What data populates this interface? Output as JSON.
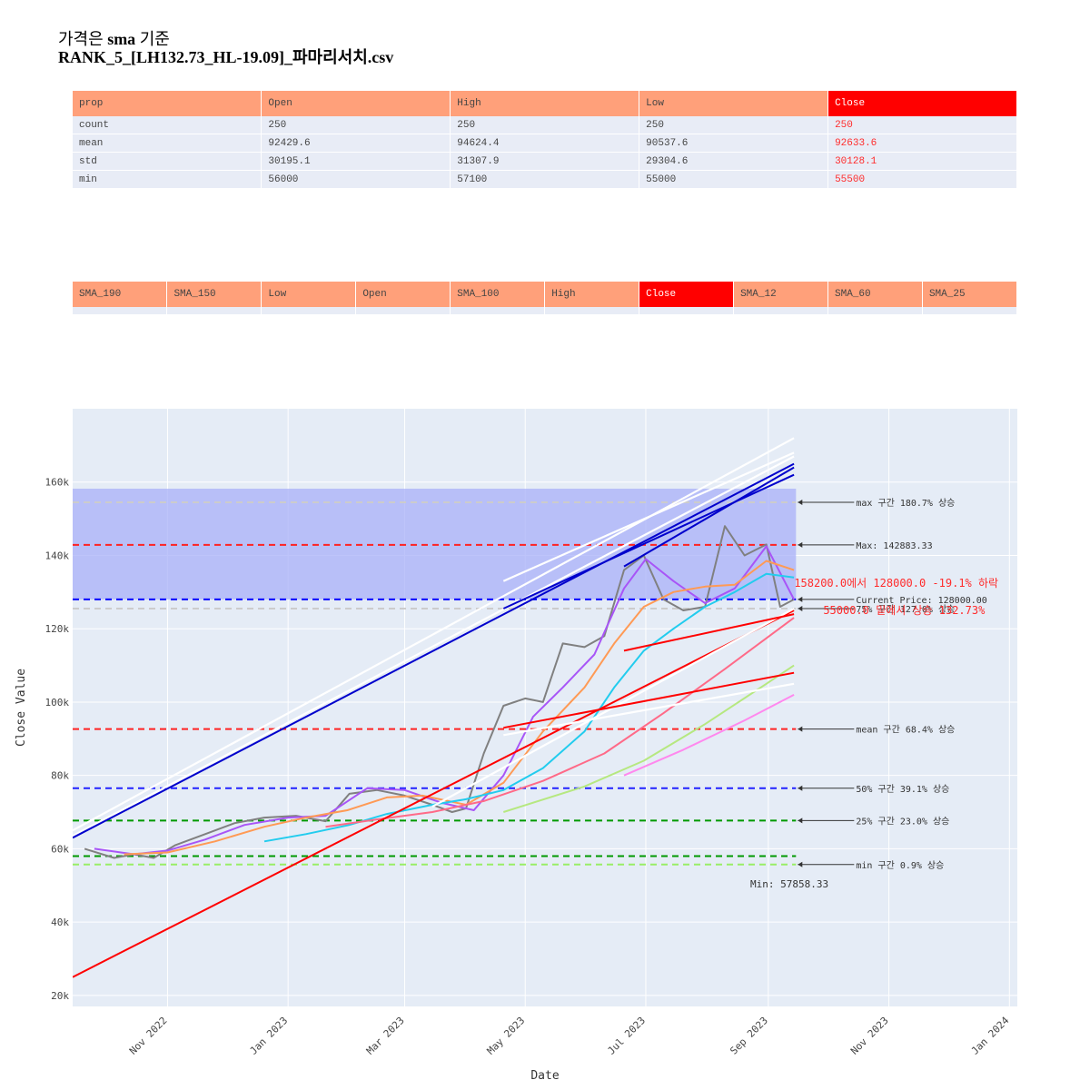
{
  "title": {
    "line1_prefix": "가격은 ",
    "line1_bold": "sma",
    "line1_suffix": " 기준",
    "line2": "RANK_5_[LH132.73_HL-19.09]_파마리서치.csv"
  },
  "table1": {
    "headers": [
      "prop",
      "Open",
      "High",
      "Low",
      "Close"
    ],
    "highlight_col": 4,
    "rows": [
      [
        "count",
        "250",
        "250",
        "250",
        "250"
      ],
      [
        "mean",
        "92429.6",
        "94624.4",
        "90537.6",
        "92633.6"
      ],
      [
        "std",
        "30195.1",
        "31307.9",
        "29304.6",
        "30128.1"
      ],
      [
        "min",
        "56000",
        "57100",
        "55000",
        "55500"
      ]
    ]
  },
  "table2": {
    "headers": [
      "SMA_190",
      "SMA_150",
      "Low",
      "Open",
      "SMA_100",
      "High",
      "Close",
      "SMA_12",
      "SMA_60",
      "SMA_25"
    ],
    "highlight_col": 6
  },
  "colors": {
    "header_bg": "#ffa07a",
    "header_highlight": "#ff0000",
    "plot_bg": "#e5ecf6",
    "price": "#808080",
    "band_fill": "#a8b0f8"
  },
  "chart_data": {
    "type": "line",
    "xlabel": "Date",
    "ylabel": "Close Value",
    "x_range": [
      "2022-09-14",
      "2024-01-05"
    ],
    "ylim": [
      17000,
      180000
    ],
    "x_ticks": [
      {
        "date": "2022-11-01",
        "label": "Nov 2022"
      },
      {
        "date": "2023-01-01",
        "label": "Jan 2023"
      },
      {
        "date": "2023-03-01",
        "label": "Mar 2023"
      },
      {
        "date": "2023-05-01",
        "label": "May 2023"
      },
      {
        "date": "2023-07-01",
        "label": "Jul 2023"
      },
      {
        "date": "2023-09-01",
        "label": "Sep 2023"
      },
      {
        "date": "2023-11-01",
        "label": "Nov 2023"
      },
      {
        "date": "2024-01-01",
        "label": "Jan 2024"
      }
    ],
    "y_ticks": [
      {
        "value": 20000,
        "label": "20k"
      },
      {
        "value": 40000,
        "label": "40k"
      },
      {
        "value": 60000,
        "label": "60k"
      },
      {
        "value": 80000,
        "label": "80k"
      },
      {
        "value": 100000,
        "label": "100k"
      },
      {
        "value": 120000,
        "label": "120k"
      },
      {
        "value": 140000,
        "label": "140k"
      },
      {
        "value": 160000,
        "label": "160k"
      }
    ],
    "grid": true,
    "band": {
      "x0": "2022-09-14",
      "x1": "2023-09-15",
      "y0": 128000,
      "y1": 158200
    },
    "hlines": [
      {
        "y": 154500,
        "color": "#cccccc",
        "label": "max 구간 180.7% 상승"
      },
      {
        "y": 142883.33,
        "color": "#ff2222",
        "label": "Max: 142883.33"
      },
      {
        "y": 128000,
        "color": "#0000ff",
        "label": "Current Price: 128000.00"
      },
      {
        "y": 125500,
        "color": "#cccccc",
        "label": "75% 구간 127.0% 상승"
      },
      {
        "y": 92633.6,
        "color": "#ff2222",
        "label": "mean 구간 68.4% 상승"
      },
      {
        "y": 76500,
        "color": "#2222ff",
        "label": "50% 구간 39.1% 상승"
      },
      {
        "y": 67700,
        "color": "#009900",
        "label": "25% 구간 23.0% 상승"
      },
      {
        "y": 58000,
        "color": "#009900",
        "label": ""
      },
      {
        "y": 55700,
        "color": "#99ee66",
        "label": "min 구간 0.9% 상승"
      }
    ],
    "annotations": {
      "drop": "158200.0에서 128000.0 -19.1% 하락",
      "rise": "55000.0 밑에서 상승 132.73%",
      "min_label": "Min: 57858.33"
    },
    "series": [
      {
        "color": "#808080",
        "x": [
          "2022-09-20",
          "2022-10-05",
          "2022-10-15",
          "2022-10-25",
          "2022-11-05",
          "2022-11-20",
          "2022-12-05",
          "2022-12-20",
          "2023-01-05",
          "2023-01-20",
          "2023-02-01",
          "2023-02-15",
          "2023-03-01",
          "2023-03-15",
          "2023-03-25",
          "2023-04-01",
          "2023-04-10",
          "2023-04-20",
          "2023-05-01",
          "2023-05-10",
          "2023-05-20",
          "2023-05-31",
          "2023-06-10",
          "2023-06-20",
          "2023-06-30",
          "2023-07-10",
          "2023-07-20",
          "2023-07-31",
          "2023-08-10",
          "2023-08-20",
          "2023-08-31",
          "2023-09-07",
          "2023-09-14"
        ],
        "values": [
          60000,
          57500,
          58500,
          57500,
          61000,
          64000,
          67000,
          68500,
          69000,
          67500,
          75000,
          76000,
          74500,
          72000,
          70000,
          71000,
          86000,
          99000,
          101000,
          100000,
          116000,
          115000,
          118000,
          136000,
          140000,
          128000,
          125000,
          126000,
          148000,
          140000,
          143000,
          126000,
          128000
        ]
      },
      {
        "color": "#a855f7",
        "x": [
          "2022-09-25",
          "2022-10-15",
          "2022-11-01",
          "2022-11-20",
          "2022-12-10",
          "2023-01-01",
          "2023-01-20",
          "2023-02-10",
          "2023-03-01",
          "2023-03-20",
          "2023-04-05",
          "2023-04-20",
          "2023-05-05",
          "2023-05-20",
          "2023-06-05",
          "2023-06-20",
          "2023-07-01",
          "2023-07-15",
          "2023-07-31",
          "2023-08-15",
          "2023-08-31",
          "2023-09-14"
        ],
        "values": [
          60000,
          58500,
          59500,
          62500,
          66500,
          68500,
          69000,
          76500,
          76000,
          72500,
          70500,
          80000,
          96000,
          104000,
          113000,
          131000,
          139000,
          133000,
          127000,
          131000,
          142500,
          128000
        ]
      },
      {
        "color": "#ff9a55",
        "x": [
          "2022-10-10",
          "2022-11-01",
          "2022-11-25",
          "2022-12-20",
          "2023-01-10",
          "2023-01-31",
          "2023-02-20",
          "2023-03-10",
          "2023-04-01",
          "2023-04-20",
          "2023-05-10",
          "2023-05-31",
          "2023-06-15",
          "2023-06-30",
          "2023-07-15",
          "2023-07-31",
          "2023-08-15",
          "2023-08-31",
          "2023-09-14"
        ],
        "values": [
          58500,
          59000,
          62000,
          66000,
          68500,
          70500,
          74000,
          74500,
          72000,
          78000,
          92000,
          104000,
          116000,
          126000,
          130000,
          131500,
          132000,
          138500,
          136000
        ]
      },
      {
        "color": "#22ccee",
        "x": [
          "2022-12-20",
          "2023-01-10",
          "2023-02-01",
          "2023-02-20",
          "2023-03-15",
          "2023-04-01",
          "2023-04-20",
          "2023-05-10",
          "2023-05-31",
          "2023-06-15",
          "2023-06-30",
          "2023-07-15",
          "2023-07-31",
          "2023-08-15",
          "2023-08-31",
          "2023-09-14"
        ],
        "values": [
          62000,
          64000,
          66500,
          69500,
          72000,
          73500,
          76000,
          82000,
          92000,
          104000,
          114000,
          120000,
          126000,
          130000,
          135000,
          134000
        ]
      },
      {
        "color": "#ff6a88",
        "x": [
          "2023-01-20",
          "2023-02-15",
          "2023-03-15",
          "2023-04-10",
          "2023-05-10",
          "2023-06-10",
          "2023-07-10",
          "2023-08-10",
          "2023-09-14"
        ],
        "values": [
          66000,
          68000,
          70000,
          73000,
          78500,
          86000,
          97000,
          109000,
          123000
        ]
      },
      {
        "color": "#b6e880",
        "x": [
          "2023-04-20",
          "2023-05-31",
          "2023-06-30",
          "2023-07-31",
          "2023-08-31",
          "2023-09-14"
        ],
        "values": [
          70000,
          77000,
          84000,
          94000,
          105000,
          110000
        ]
      },
      {
        "color": "#ff88ee",
        "x": [
          "2023-06-20",
          "2023-07-20",
          "2023-08-20",
          "2023-09-14"
        ],
        "values": [
          80000,
          87000,
          95000,
          102000
        ]
      },
      {
        "color": "#ffffff",
        "x": [
          "2022-09-14",
          "2023-09-14"
        ],
        "values": [
          65000,
          172000
        ]
      },
      {
        "color": "#ffffff",
        "x": [
          "2022-09-14",
          "2023-09-14"
        ],
        "values": [
          63500,
          167000
        ]
      },
      {
        "color": "#0000cc",
        "x": [
          "2022-09-14",
          "2023-09-14"
        ],
        "values": [
          63000,
          165000
        ]
      },
      {
        "color": "#0000cc",
        "x": [
          "2023-04-20",
          "2023-09-14"
        ],
        "values": [
          125500,
          162000
        ]
      },
      {
        "color": "#0000cc",
        "x": [
          "2023-06-20",
          "2023-09-14"
        ],
        "values": [
          137000,
          164000
        ]
      },
      {
        "color": "#ffffff",
        "x": [
          "2023-04-20",
          "2023-09-14"
        ],
        "values": [
          133000,
          168000
        ]
      },
      {
        "color": "#ff0000",
        "x": [
          "2022-09-14",
          "2023-09-14"
        ],
        "values": [
          25000,
          125000
        ]
      },
      {
        "color": "#ffffff",
        "x": [
          "2023-03-15",
          "2023-09-14"
        ],
        "values": [
          71500,
          125500
        ]
      },
      {
        "color": "#ff0000",
        "x": [
          "2023-04-20",
          "2023-09-14"
        ],
        "values": [
          93000,
          108000
        ]
      },
      {
        "color": "#ffffff",
        "x": [
          "2023-04-20",
          "2023-09-14"
        ],
        "values": [
          91000,
          105000
        ]
      },
      {
        "color": "#ff0000",
        "x": [
          "2023-06-20",
          "2023-09-14"
        ],
        "values": [
          114000,
          124000
        ]
      }
    ]
  }
}
